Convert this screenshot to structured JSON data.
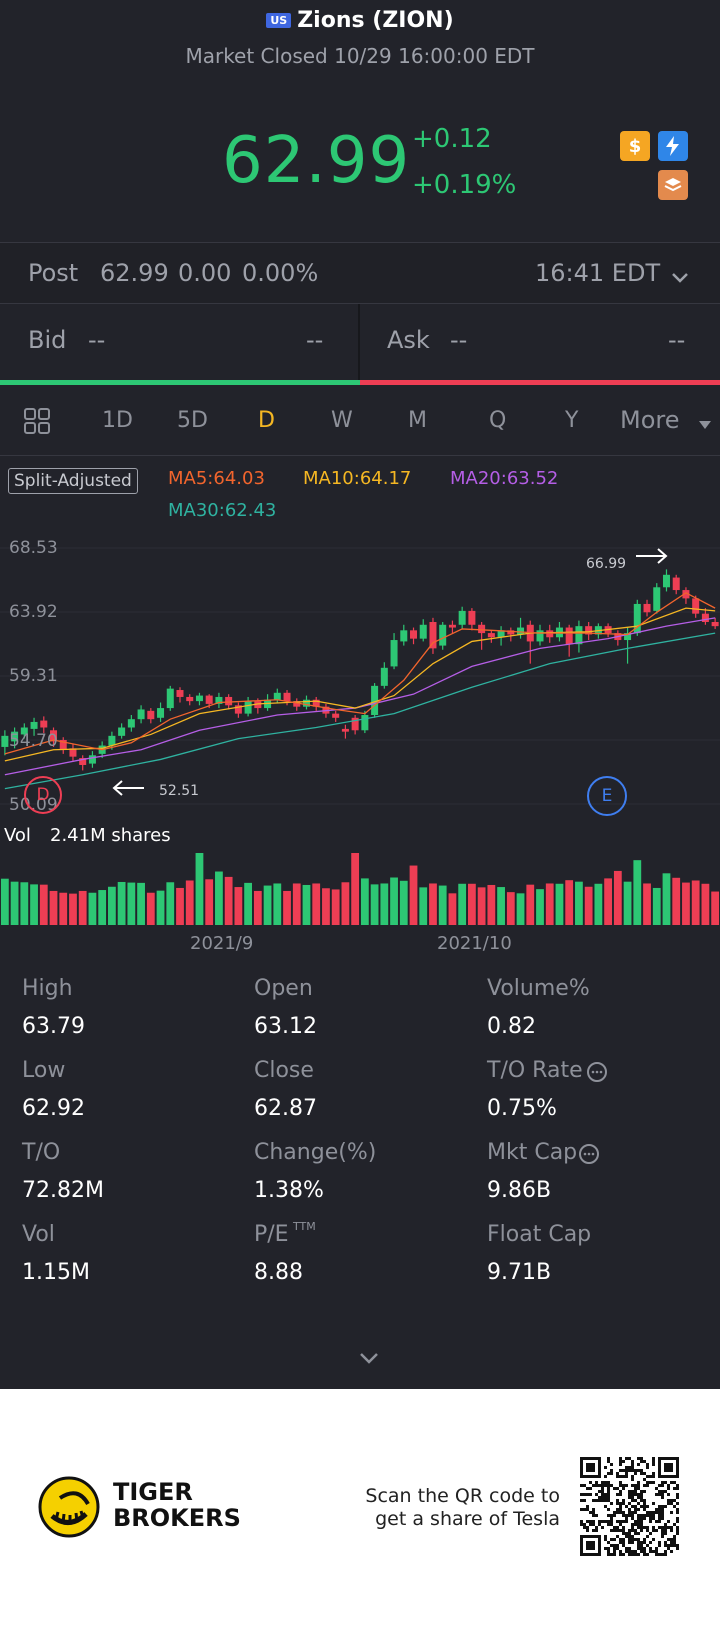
{
  "header": {
    "market_badge": "US",
    "title": "Zions (ZION)",
    "status": "Market Closed 10/29 16:00:00 EDT"
  },
  "quote": {
    "price": "62.99",
    "change": "+0.12",
    "change_pct": "+0.19%"
  },
  "post": {
    "label": "Post",
    "price": "62.99",
    "change": "0.00",
    "change_pct": "0.00%",
    "time": "16:41 EDT"
  },
  "bid": {
    "label": "Bid",
    "value": "--",
    "size": "--"
  },
  "ask": {
    "label": "Ask",
    "value": "--",
    "size": "--"
  },
  "tabs": [
    "1D",
    "5D",
    "D",
    "W",
    "M",
    "Q",
    "Y",
    "More"
  ],
  "active_tab": "D",
  "chart_header": {
    "split_label": "Split-Adjusted",
    "ma5": "MA5:64.03",
    "ma10": "MA10:64.17",
    "ma20": "MA20:63.52",
    "ma30": "MA30:62.43"
  },
  "colors": {
    "up": "#2dc774",
    "down": "#ee3e54",
    "ma5": "#f2652d",
    "ma10": "#f5b723",
    "ma20": "#b55ee6",
    "ma30": "#2fb2a0",
    "active_tab": "#f5b723"
  },
  "chart_data": {
    "type": "candlestick",
    "y_ticks": [
      "68.53",
      "63.92",
      "59.31",
      "54.70",
      "50.09"
    ],
    "ylim": [
      50.09,
      68.53
    ],
    "x_ticks": [
      "2021/9",
      "2021/10"
    ],
    "high_marker": "66.99",
    "low_marker": "52.51",
    "event_markers": [
      "D",
      "E"
    ],
    "volume_label": "Vol",
    "volume_value": "2.41M shares",
    "candles": [
      {
        "o": 54.2,
        "c": 55.0,
        "h": 55.4,
        "l": 53.6
      },
      {
        "o": 54.6,
        "c": 55.3,
        "h": 55.6,
        "l": 54.1
      },
      {
        "o": 55.1,
        "c": 55.6,
        "h": 55.9,
        "l": 54.8
      },
      {
        "o": 55.5,
        "c": 56.0,
        "h": 56.3,
        "l": 55.0
      },
      {
        "o": 56.1,
        "c": 55.6,
        "h": 56.4,
        "l": 55.2
      },
      {
        "o": 55.4,
        "c": 54.6,
        "h": 55.6,
        "l": 54.2
      },
      {
        "o": 54.7,
        "c": 54.0,
        "h": 54.9,
        "l": 53.7
      },
      {
        "o": 54.1,
        "c": 53.5,
        "h": 54.4,
        "l": 53.2
      },
      {
        "o": 53.4,
        "c": 52.9,
        "h": 53.6,
        "l": 52.51
      },
      {
        "o": 53.0,
        "c": 53.6,
        "h": 53.9,
        "l": 52.7
      },
      {
        "o": 53.7,
        "c": 54.3,
        "h": 54.6,
        "l": 53.4
      },
      {
        "o": 54.3,
        "c": 55.0,
        "h": 55.3,
        "l": 54.0
      },
      {
        "o": 55.0,
        "c": 55.6,
        "h": 55.9,
        "l": 54.8
      },
      {
        "o": 55.6,
        "c": 56.2,
        "h": 56.5,
        "l": 55.3
      },
      {
        "o": 56.2,
        "c": 56.9,
        "h": 57.2,
        "l": 55.9
      },
      {
        "o": 56.8,
        "c": 56.2,
        "h": 57.0,
        "l": 55.9
      },
      {
        "o": 56.3,
        "c": 57.0,
        "h": 57.4,
        "l": 56.0
      },
      {
        "o": 57.0,
        "c": 58.4,
        "h": 58.6,
        "l": 56.8
      },
      {
        "o": 58.3,
        "c": 57.8,
        "h": 58.5,
        "l": 57.4
      },
      {
        "o": 57.8,
        "c": 57.5,
        "h": 58.0,
        "l": 57.2
      },
      {
        "o": 57.5,
        "c": 57.9,
        "h": 58.1,
        "l": 57.2
      },
      {
        "o": 57.9,
        "c": 57.3,
        "h": 58.0,
        "l": 57.0
      },
      {
        "o": 57.3,
        "c": 57.8,
        "h": 58.1,
        "l": 57.0
      },
      {
        "o": 57.8,
        "c": 57.2,
        "h": 58.0,
        "l": 56.9
      },
      {
        "o": 57.2,
        "c": 56.6,
        "h": 57.4,
        "l": 56.3
      },
      {
        "o": 56.6,
        "c": 57.5,
        "h": 57.8,
        "l": 56.4
      },
      {
        "o": 57.5,
        "c": 57.0,
        "h": 57.7,
        "l": 56.6
      },
      {
        "o": 57.0,
        "c": 57.6,
        "h": 58.0,
        "l": 56.8
      },
      {
        "o": 57.6,
        "c": 58.1,
        "h": 58.4,
        "l": 57.4
      },
      {
        "o": 58.1,
        "c": 57.5,
        "h": 58.3,
        "l": 57.2
      },
      {
        "o": 57.5,
        "c": 57.1,
        "h": 57.7,
        "l": 56.8
      },
      {
        "o": 57.1,
        "c": 57.6,
        "h": 57.9,
        "l": 56.9
      },
      {
        "o": 57.6,
        "c": 57.1,
        "h": 57.8,
        "l": 56.8
      },
      {
        "o": 57.1,
        "c": 56.6,
        "h": 57.3,
        "l": 56.3
      },
      {
        "o": 56.6,
        "c": 56.3,
        "h": 56.8,
        "l": 56.0
      },
      {
        "o": 55.5,
        "c": 55.3,
        "h": 55.8,
        "l": 54.8
      },
      {
        "o": 56.3,
        "c": 55.4,
        "h": 56.5,
        "l": 55.1
      },
      {
        "o": 55.4,
        "c": 56.5,
        "h": 56.8,
        "l": 55.2
      },
      {
        "o": 56.5,
        "c": 58.6,
        "h": 58.8,
        "l": 56.3
      },
      {
        "o": 58.6,
        "c": 59.9,
        "h": 60.3,
        "l": 58.4
      },
      {
        "o": 60.0,
        "c": 61.9,
        "h": 62.4,
        "l": 59.8
      },
      {
        "o": 61.8,
        "c": 62.6,
        "h": 63.0,
        "l": 61.5
      },
      {
        "o": 62.6,
        "c": 62.0,
        "h": 62.8,
        "l": 61.6
      },
      {
        "o": 62.0,
        "c": 63.0,
        "h": 63.4,
        "l": 61.8
      },
      {
        "o": 63.2,
        "c": 61.3,
        "h": 63.5,
        "l": 60.9
      },
      {
        "o": 61.5,
        "c": 63.0,
        "h": 63.2,
        "l": 61.2
      },
      {
        "o": 63.0,
        "c": 62.8,
        "h": 63.3,
        "l": 62.4
      },
      {
        "o": 63.0,
        "c": 64.0,
        "h": 64.3,
        "l": 62.7
      },
      {
        "o": 64.0,
        "c": 63.0,
        "h": 64.2,
        "l": 62.6
      },
      {
        "o": 63.0,
        "c": 62.4,
        "h": 63.2,
        "l": 61.2
      },
      {
        "o": 62.4,
        "c": 62.1,
        "h": 62.6,
        "l": 61.7
      },
      {
        "o": 62.1,
        "c": 62.6,
        "h": 62.9,
        "l": 61.5
      },
      {
        "o": 62.6,
        "c": 62.3,
        "h": 62.8,
        "l": 61.8
      },
      {
        "o": 62.3,
        "c": 62.8,
        "h": 63.5,
        "l": 62.0
      },
      {
        "o": 63.0,
        "c": 61.8,
        "h": 63.3,
        "l": 60.2
      },
      {
        "o": 61.8,
        "c": 62.6,
        "h": 63.0,
        "l": 61.5
      },
      {
        "o": 62.6,
        "c": 62.1,
        "h": 63.0,
        "l": 61.7
      },
      {
        "o": 62.1,
        "c": 62.8,
        "h": 63.2,
        "l": 61.8
      },
      {
        "o": 62.8,
        "c": 61.6,
        "h": 63.0,
        "l": 60.7
      },
      {
        "o": 61.6,
        "c": 62.9,
        "h": 63.3,
        "l": 61.0
      },
      {
        "o": 62.9,
        "c": 62.3,
        "h": 63.2,
        "l": 61.9
      },
      {
        "o": 62.3,
        "c": 62.9,
        "h": 63.1,
        "l": 62.0
      },
      {
        "o": 62.9,
        "c": 62.4,
        "h": 63.1,
        "l": 62.1
      },
      {
        "o": 62.4,
        "c": 61.9,
        "h": 62.6,
        "l": 61.5
      },
      {
        "o": 61.9,
        "c": 62.4,
        "h": 62.8,
        "l": 60.2
      },
      {
        "o": 62.4,
        "c": 64.5,
        "h": 64.8,
        "l": 62.2
      },
      {
        "o": 64.5,
        "c": 63.9,
        "h": 64.8,
        "l": 63.6
      },
      {
        "o": 64.0,
        "c": 65.7,
        "h": 66.0,
        "l": 63.8
      },
      {
        "o": 65.7,
        "c": 66.6,
        "h": 66.99,
        "l": 65.4
      },
      {
        "o": 66.4,
        "c": 65.5,
        "h": 66.6,
        "l": 65.2
      },
      {
        "o": 65.5,
        "c": 64.9,
        "h": 65.7,
        "l": 64.5
      },
      {
        "o": 64.9,
        "c": 63.8,
        "h": 65.1,
        "l": 63.5
      },
      {
        "o": 63.8,
        "c": 63.2,
        "h": 64.2,
        "l": 63.0
      },
      {
        "o": 63.2,
        "c": 62.9,
        "h": 63.5,
        "l": 62.7
      }
    ],
    "volume": [
      1.55,
      1.45,
      1.43,
      1.36,
      1.35,
      1.14,
      1.08,
      1.05,
      1.14,
      1.08,
      1.17,
      1.28,
      1.44,
      1.42,
      1.41,
      1.08,
      1.15,
      1.43,
      1.24,
      1.49,
      2.41,
      1.53,
      1.79,
      1.61,
      1.27,
      1.41,
      1.14,
      1.32,
      1.39,
      1.14,
      1.39,
      1.34,
      1.39,
      1.23,
      1.19,
      1.43,
      2.41,
      1.56,
      1.36,
      1.39,
      1.59,
      1.48,
      1.99,
      1.26,
      1.39,
      1.32,
      1.06,
      1.38,
      1.38,
      1.26,
      1.34,
      1.27,
      1.1,
      1.06,
      1.35,
      1.2,
      1.39,
      1.38,
      1.5,
      1.45,
      1.28,
      1.38,
      1.56,
      1.81,
      1.45,
      2.17,
      1.39,
      1.24,
      1.73,
      1.58,
      1.42,
      1.49,
      1.38,
      1.12
    ],
    "ma5": [
      [
        0,
        53.7
      ],
      [
        5,
        54.7
      ],
      [
        10,
        54.0
      ],
      [
        13,
        54.5
      ],
      [
        17,
        56.2
      ],
      [
        22,
        57.4
      ],
      [
        28,
        57.6
      ],
      [
        34,
        56.9
      ],
      [
        37,
        56.6
      ],
      [
        41,
        59.0
      ],
      [
        44,
        61.7
      ],
      [
        47,
        62.7
      ],
      [
        50,
        62.6
      ],
      [
        55,
        62.4
      ],
      [
        60,
        62.4
      ],
      [
        64,
        62.3
      ],
      [
        67,
        63.9
      ],
      [
        70,
        65.3
      ],
      [
        73,
        64.2
      ]
    ],
    "ma10": [
      [
        0,
        53.2
      ],
      [
        5,
        54.0
      ],
      [
        10,
        54.1
      ],
      [
        15,
        55.1
      ],
      [
        20,
        56.6
      ],
      [
        26,
        57.3
      ],
      [
        32,
        57.5
      ],
      [
        36,
        57.0
      ],
      [
        40,
        57.9
      ],
      [
        44,
        60.2
      ],
      [
        48,
        61.8
      ],
      [
        54,
        62.4
      ],
      [
        60,
        62.5
      ],
      [
        65,
        62.9
      ],
      [
        70,
        64.2
      ],
      [
        73,
        64.0
      ]
    ],
    "ma20": [
      [
        0,
        52.2
      ],
      [
        8,
        53.3
      ],
      [
        14,
        54.0
      ],
      [
        20,
        55.4
      ],
      [
        28,
        56.5
      ],
      [
        36,
        57.0
      ],
      [
        42,
        58.0
      ],
      [
        48,
        60.0
      ],
      [
        55,
        61.3
      ],
      [
        62,
        62.0
      ],
      [
        68,
        62.9
      ],
      [
        73,
        63.5
      ]
    ],
    "ma30": [
      [
        0,
        51.2
      ],
      [
        8,
        52.2
      ],
      [
        16,
        53.3
      ],
      [
        24,
        54.8
      ],
      [
        32,
        55.6
      ],
      [
        40,
        56.6
      ],
      [
        48,
        58.5
      ],
      [
        56,
        60.2
      ],
      [
        64,
        61.3
      ],
      [
        73,
        62.4
      ]
    ]
  },
  "stats": [
    {
      "label": "High",
      "value": "63.79"
    },
    {
      "label": "Open",
      "value": "63.12"
    },
    {
      "label": "Volume%",
      "value": "0.82"
    },
    {
      "label": "Low",
      "value": "62.92"
    },
    {
      "label": "Close",
      "value": "62.87"
    },
    {
      "label": "T/O Rate",
      "value": "0.75%"
    },
    {
      "label": "T/O",
      "value": "72.82M"
    },
    {
      "label": "Change(%)",
      "value": "1.38%"
    },
    {
      "label": "Mkt Cap",
      "value": "9.86B"
    },
    {
      "label": "Vol",
      "value": "1.15M"
    },
    {
      "label": "P/E",
      "value": "8.88"
    },
    {
      "label": "Float Cap",
      "value": "9.71B"
    }
  ],
  "pe_superscript": "TTM",
  "footer": {
    "brand_line1": "TIGER",
    "brand_line2": "BROKERS",
    "promo_line1": "Scan the QR code to",
    "promo_line2": "get a share of Tesla"
  }
}
